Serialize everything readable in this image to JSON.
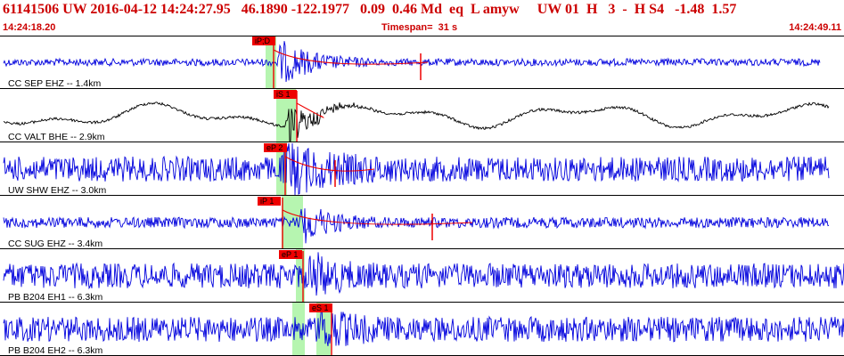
{
  "header": {
    "line1": "61141506 UW 2016-04-12 14:24:27.95   46.1890 -122.1977   0.09  0.46 Md  eq  L amyw     UW 01  H   3  -  H S4   -1.48  1.57",
    "start_time": "14:24:18.20",
    "timespan": "Timespan=  31 s",
    "end_time": "14:24:49.11"
  },
  "colors": {
    "header_text": "#cc0000",
    "trace_blue": "#0000dd",
    "trace_black": "#000000",
    "pick_red": "#ee0000",
    "window_green": "#b6f5b0",
    "divider": "#000000"
  },
  "traces": [
    {
      "label": "CC SEP EHZ -- 1.4km",
      "color": "blue",
      "picks": [
        {
          "label": "iP;D"
        }
      ]
    },
    {
      "label": "CC VALT BHE -- 2.9km",
      "color": "black",
      "picks": [
        {
          "label": "iS 1"
        }
      ]
    },
    {
      "label": "UW SHW EHZ -- 3.0km",
      "color": "blue",
      "picks": [
        {
          "label": "eP 2"
        }
      ]
    },
    {
      "label": "CC SUG EHZ -- 3.4km",
      "color": "blue",
      "picks": [
        {
          "label": "iP 1"
        }
      ]
    },
    {
      "label": "PB B204 EH1 -- 6.3km",
      "color": "blue",
      "picks": [
        {
          "label": "eP 1"
        }
      ]
    },
    {
      "label": "PB B204 EH2 -- 6.3km",
      "color": "blue",
      "picks": [
        {
          "label": "eS 1"
        }
      ]
    }
  ]
}
